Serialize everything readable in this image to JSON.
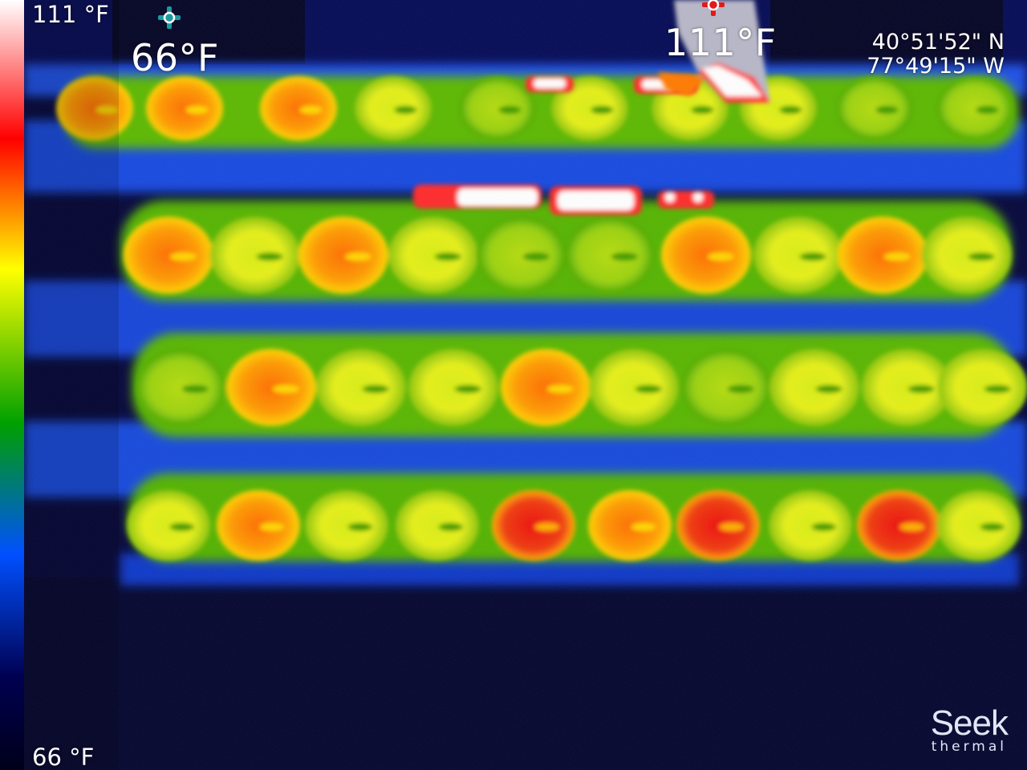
{
  "scale": {
    "max_label": "111 °F",
    "min_label": "66 °F",
    "gradient": [
      "#ffffff",
      "#ff0000",
      "#ffff00",
      "#00a000",
      "#0050ff",
      "#000050",
      "#00001a"
    ]
  },
  "spots": {
    "cold": {
      "value": "66°F",
      "marker_color": "#1a9aa0",
      "icon": "crosshair-icon"
    },
    "hot": {
      "value": "111°F",
      "marker_color": "#e11a1a",
      "icon": "crosshair-icon"
    }
  },
  "gps": {
    "latitude": "40°51'52\" N",
    "longitude": "77°49'15\" W"
  },
  "brand": {
    "name": "Seek",
    "sub": "thermal"
  },
  "palette": {
    "background_dark": "#05063a",
    "mid_blue": "#1040d8",
    "green": "#3aa400",
    "yellow": "#eaf000",
    "orange": "#ff8800",
    "red": "#ee1212",
    "white_hot": "#ffffff"
  }
}
